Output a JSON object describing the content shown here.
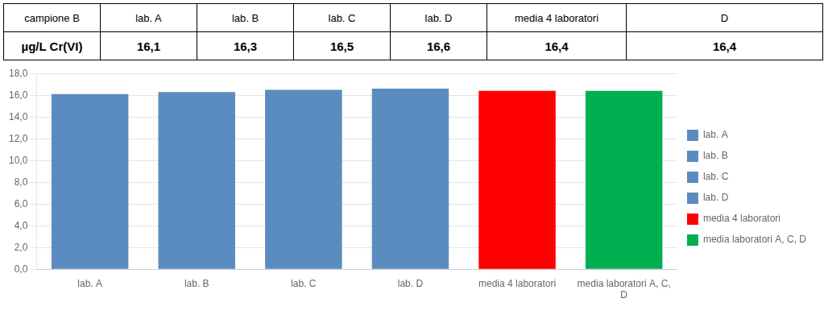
{
  "chart_data": {
    "type": "bar",
    "table": [
      [
        "campione B",
        "lab. A",
        "lab. B",
        "lab. C",
        "lab. D",
        "media 4 laboratori",
        "D"
      ],
      [
        "µg/L Cr(VI)",
        "16,1",
        "16,3",
        "16,5",
        "16,6",
        "16,4",
        "16,4"
      ]
    ],
    "categories": [
      "lab. A",
      "lab. B",
      "lab. C",
      "lab. D",
      "media 4 laboratori",
      "media laboratori A, C,\nD"
    ],
    "series": [
      {
        "name": "lab. A",
        "color": "#5b8cbf",
        "values": [
          16.1,
          null,
          null,
          null,
          null,
          null
        ]
      },
      {
        "name": "lab. B",
        "color": "#5b8cbf",
        "values": [
          null,
          16.3,
          null,
          null,
          null,
          null
        ]
      },
      {
        "name": "lab. C",
        "color": "#5b8cbf",
        "values": [
          null,
          null,
          16.5,
          null,
          null,
          null
        ]
      },
      {
        "name": "lab. D",
        "color": "#5b8cbf",
        "values": [
          null,
          null,
          null,
          16.6,
          null,
          null
        ]
      },
      {
        "name": "media 4 laboratori",
        "color": "#ff0000",
        "values": [
          null,
          null,
          null,
          null,
          16.4,
          null
        ]
      },
      {
        "name": "media laboratori A, C, D",
        "color": "#00b050",
        "values": [
          null,
          null,
          null,
          null,
          null,
          16.4
        ]
      }
    ],
    "ylim": [
      0,
      18
    ],
    "yticks": [
      {
        "value": 0.0,
        "label": "0,0"
      },
      {
        "value": 2.0,
        "label": "2,0"
      },
      {
        "value": 4.0,
        "label": "4,0"
      },
      {
        "value": 6.0,
        "label": "6,0"
      },
      {
        "value": 8.0,
        "label": "8,0"
      },
      {
        "value": 10.0,
        "label": "10,0"
      },
      {
        "value": 12.0,
        "label": "12,0"
      },
      {
        "value": 14.0,
        "label": "14,0"
      },
      {
        "value": 16.0,
        "label": "16,0"
      },
      {
        "value": 18.0,
        "label": "18,0"
      }
    ],
    "grid": true,
    "legend": "right"
  }
}
